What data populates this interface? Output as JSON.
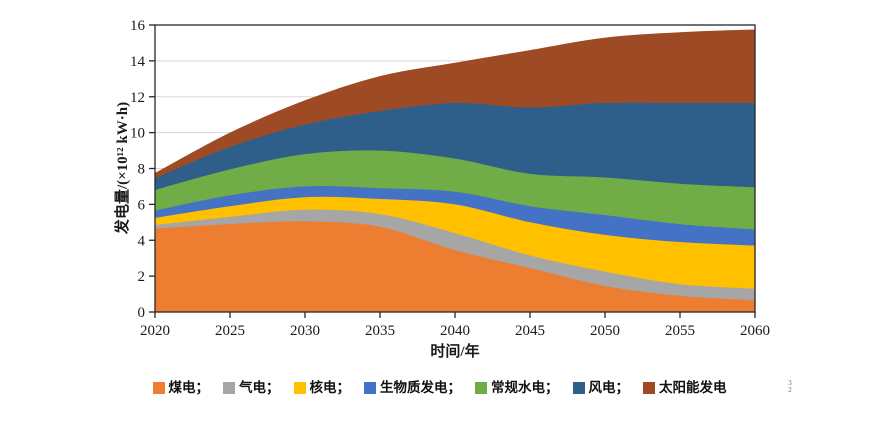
{
  "chart_data": {
    "type": "area",
    "stacked": true,
    "title": "",
    "xlabel": "时间/年",
    "ylabel": "发电量/(×10¹² kW·h)",
    "x": [
      2020,
      2025,
      2030,
      2035,
      2040,
      2045,
      2050,
      2055,
      2060
    ],
    "xlim": [
      2020,
      2060
    ],
    "ylim": [
      0,
      16
    ],
    "ytick_step": 2,
    "grid": "horizontal-only",
    "gridline_color": "#d9d9d9",
    "frame_color": "#262626",
    "legend_position": "bottom",
    "legend_separator": "；",
    "series": [
      {
        "id": "coal",
        "name": "煤电",
        "color": "#ED7D31",
        "values": [
          4.65,
          4.9,
          5.05,
          4.75,
          3.45,
          2.45,
          1.45,
          0.9,
          0.65
        ]
      },
      {
        "id": "gas",
        "name": "气电",
        "color": "#A6A6A6",
        "values": [
          0.2,
          0.4,
          0.65,
          0.7,
          0.95,
          0.7,
          0.8,
          0.65,
          0.65
        ]
      },
      {
        "id": "nuclear",
        "name": "核电",
        "color": "#FFC000",
        "values": [
          0.4,
          0.6,
          0.7,
          0.85,
          1.6,
          1.85,
          2.05,
          2.35,
          2.4
        ]
      },
      {
        "id": "biomass",
        "name": "生物质发电",
        "color": "#4472C4",
        "values": [
          0.4,
          0.6,
          0.6,
          0.6,
          0.7,
          0.9,
          1.1,
          1.0,
          0.9
        ]
      },
      {
        "id": "hydro",
        "name": "常规水电",
        "color": "#70AD47",
        "values": [
          1.15,
          1.45,
          1.8,
          2.1,
          1.85,
          1.8,
          2.1,
          2.25,
          2.35
        ]
      },
      {
        "id": "wind",
        "name": "风电",
        "color": "#2E5F8A",
        "values": [
          0.65,
          1.25,
          1.65,
          2.2,
          3.1,
          3.7,
          4.15,
          4.5,
          4.7
        ]
      },
      {
        "id": "solar",
        "name": "太阳能发电",
        "color": "#9E4B25",
        "values": [
          0.3,
          0.8,
          1.35,
          1.95,
          2.25,
          3.2,
          3.65,
          3.95,
          4.1
        ]
      }
    ]
  },
  "artifact": {
    "line1": "3",
    "line2": "2"
  }
}
